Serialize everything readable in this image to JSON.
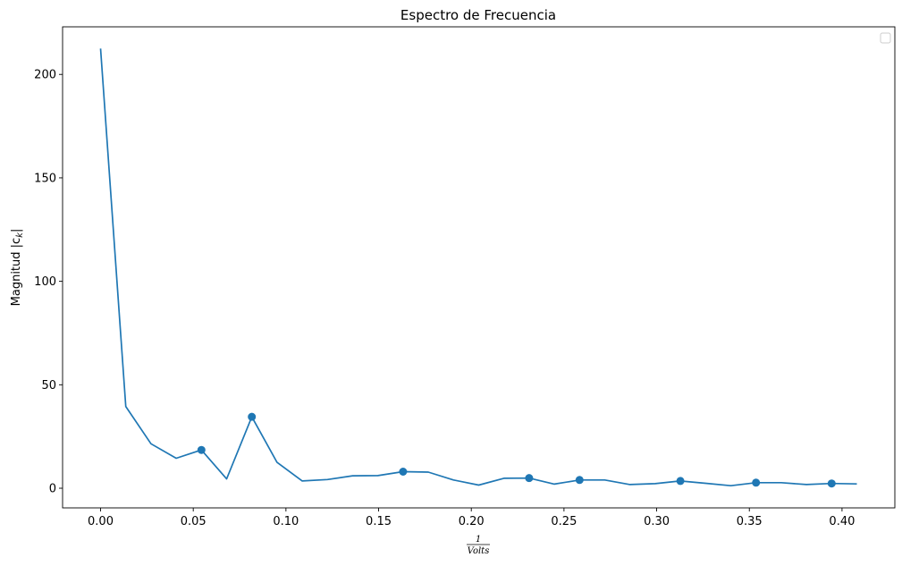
{
  "chart_data": {
    "type": "line",
    "title": "Espectro de Frecuencia",
    "xlabel_numerator": "1",
    "xlabel_denominator": "Volts",
    "ylabel": "Magnitud |c",
    "ylabel_sub": "k",
    "ylabel_end": "|",
    "xlim": [
      -0.0205,
      0.4285
    ],
    "ylim": [
      -9.5,
      223
    ],
    "xticks": [
      "0.00",
      "0.05",
      "0.10",
      "0.15",
      "0.20",
      "0.25",
      "0.30",
      "0.35",
      "0.40"
    ],
    "xtick_values": [
      0,
      0.05,
      0.1,
      0.15,
      0.2,
      0.25,
      0.3,
      0.35,
      0.4
    ],
    "yticks": [
      "0",
      "50",
      "100",
      "150",
      "200"
    ],
    "ytick_values": [
      0,
      50,
      100,
      150,
      200
    ],
    "grid": false,
    "legend": "top-right",
    "line_color": "#1f77b4",
    "series": [
      {
        "x": [
          0.0,
          0.0136,
          0.0272,
          0.0408,
          0.0544,
          0.068,
          0.0816,
          0.0952,
          0.1088,
          0.1224,
          0.136,
          0.1496,
          0.1632,
          0.1768,
          0.1904,
          0.204,
          0.2176,
          0.2312,
          0.2448,
          0.2584,
          0.272,
          0.2856,
          0.2992,
          0.3128,
          0.3264,
          0.34,
          0.3536,
          0.3672,
          0.3808,
          0.3944,
          0.408
        ],
        "values": [
          212.5,
          39.5,
          21.5,
          14.5,
          18.5,
          4.5,
          34.5,
          12.5,
          3.5,
          4.2,
          6.0,
          6.1,
          8.0,
          7.8,
          4.0,
          1.5,
          4.8,
          4.9,
          2.0,
          4.0,
          4.0,
          1.8,
          2.2,
          3.5,
          2.4,
          1.2,
          2.7,
          2.7,
          1.8,
          2.3,
          2.1
        ]
      }
    ],
    "markers": {
      "x": [
        0.0544,
        0.0816,
        0.1632,
        0.2312,
        0.2584,
        0.3128,
        0.3536,
        0.3944
      ],
      "values": [
        18.5,
        34.5,
        8.0,
        4.9,
        4.0,
        3.5,
        2.7,
        2.3
      ]
    }
  }
}
